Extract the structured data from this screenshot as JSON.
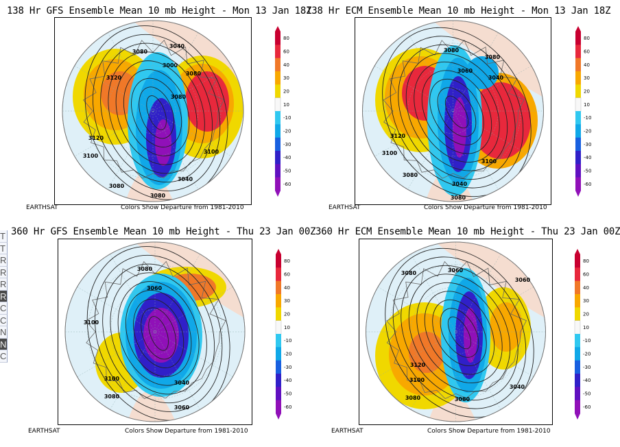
{
  "panels": [
    {
      "id": "gfs138",
      "title": "138 Hr GFS Ensemble Mean 10 mb Height - Mon 13 Jan 18Z",
      "footer_left": "EARTHSAT",
      "footer_right": "Colors Show Departure from 1981-2010",
      "contour_labels": [
        "3080",
        "3040",
        "3000",
        "3120",
        "3080",
        "3120",
        "3100",
        "3080",
        "3080",
        "3040",
        "3100",
        "3080"
      ]
    },
    {
      "id": "ecm138",
      "title": "138 Hr ECM Ensemble Mean 10 mb Height - Mon 13 Jan 18Z",
      "footer_left": "EARTHSAT",
      "footer_right": "Colors Show Departure from 1981-2010",
      "contour_labels": [
        "3080",
        "3080",
        "3040",
        "3060",
        "3120",
        "3100",
        "3080",
        "3100",
        "3040",
        "3080"
      ]
    },
    {
      "id": "gfs360",
      "title": "360 Hr GFS Ensemble Mean 10 mb Height - Thu 23 Jan 00Z",
      "footer_left": "EARTHSAT",
      "footer_right": "Colors Show Departure from 1981-2010",
      "contour_labels": [
        "3080",
        "3060",
        "3100",
        "3100",
        "3080",
        "3040",
        "3060"
      ]
    },
    {
      "id": "ecm360",
      "title": "360 Hr ECM Ensemble Mean 10 mb Height - Thu 23 Jan 00Z",
      "footer_left": "EARTHSAT",
      "footer_right": "Colors Show Departure from 1981-2010",
      "contour_labels": [
        "3080",
        "3060",
        "3060",
        "3120",
        "3100",
        "3080",
        "3080",
        "3040"
      ]
    }
  ],
  "colorbar": {
    "labels": [
      "80",
      "60",
      "40",
      "30",
      "20",
      "10",
      "-10",
      "-20",
      "-30",
      "-40",
      "-50",
      "-60"
    ],
    "colors": [
      "#c80030",
      "#e8283c",
      "#f07828",
      "#f8a800",
      "#f0d800",
      "#f8f8f8",
      "#30c8f0",
      "#10a8e8",
      "#1860e0",
      "#3020c8",
      "#6010c0",
      "#9010b8"
    ]
  },
  "sidebar": {
    "items": [
      "T",
      "T",
      "R",
      "R",
      "R",
      "R",
      "C",
      "C",
      "N",
      "N",
      "C"
    ]
  }
}
